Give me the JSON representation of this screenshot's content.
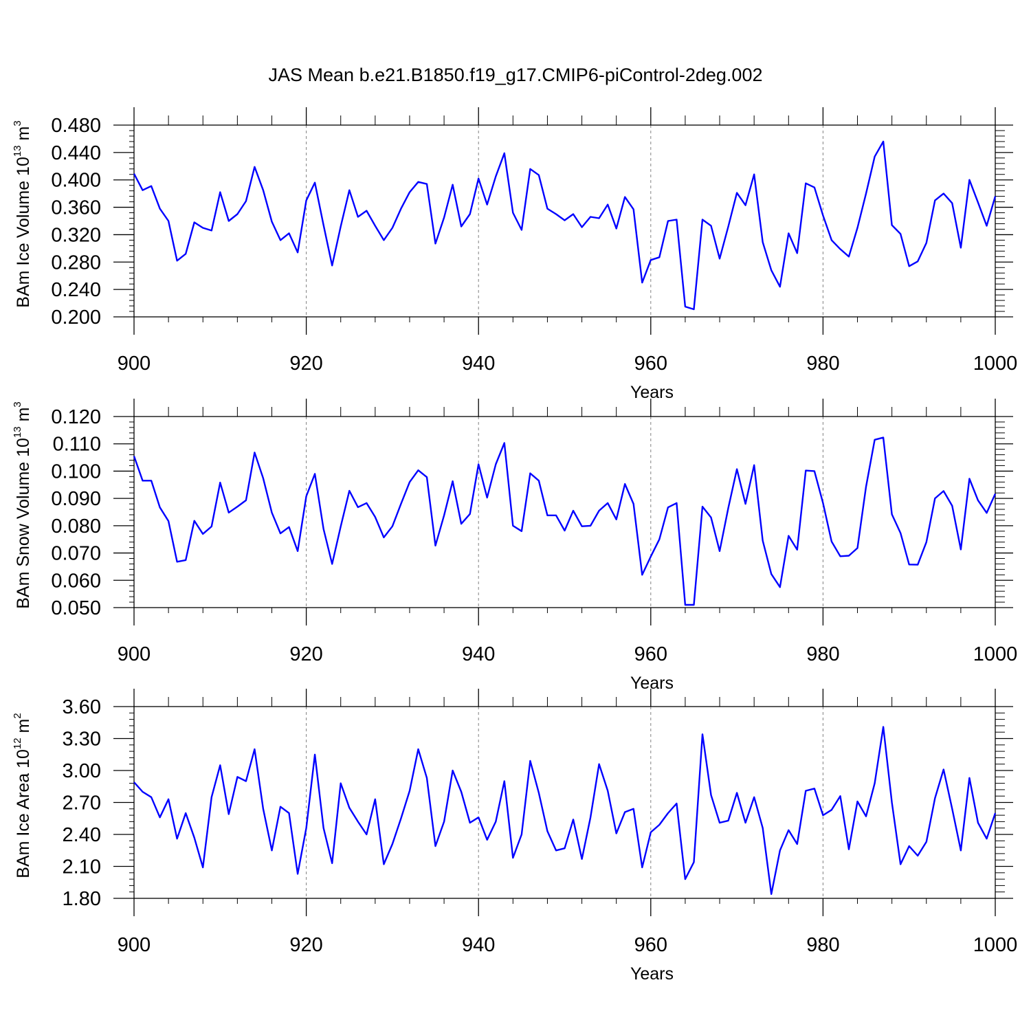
{
  "title": "JAS Mean b.e21.B1850.f19_g17.CMIP6-piControl-2deg.002",
  "chart_data": [
    {
      "type": "line",
      "ylabel": "BAm Ice Volume 10",
      "ylabel_exp": "13",
      "ylabel_unit": " m",
      "ylabel_unit_exp": "3",
      "xlabel": "Years",
      "xlim": [
        900,
        1000
      ],
      "ylim": [
        0.2,
        0.48
      ],
      "xticks": [
        900,
        920,
        940,
        960,
        980,
        1000
      ],
      "xtick_labels": [
        "900",
        "920",
        "940",
        "960",
        "980",
        "1000"
      ],
      "yticks": [
        0.2,
        0.24,
        0.28,
        0.32,
        0.36,
        0.4,
        0.44,
        0.48
      ],
      "ytick_labels": [
        "0.200",
        "0.240",
        "0.280",
        "0.320",
        "0.360",
        "0.400",
        "0.440",
        "0.480"
      ],
      "grid_x": [
        920,
        940,
        960,
        980
      ],
      "line_color": "#0000ff",
      "series": [
        {
          "name": "BAm Ice Volume",
          "x_start": 900,
          "values": [
            0.409,
            0.385,
            0.391,
            0.358,
            0.34,
            0.282,
            0.292,
            0.338,
            0.33,
            0.326,
            0.382,
            0.34,
            0.35,
            0.369,
            0.419,
            0.385,
            0.339,
            0.312,
            0.322,
            0.294,
            0.37,
            0.396,
            0.334,
            0.275,
            0.332,
            0.385,
            0.346,
            0.355,
            0.333,
            0.312,
            0.33,
            0.358,
            0.382,
            0.397,
            0.394,
            0.307,
            0.345,
            0.393,
            0.332,
            0.35,
            0.402,
            0.364,
            0.405,
            0.439,
            0.352,
            0.327,
            0.416,
            0.407,
            0.358,
            0.35,
            0.341,
            0.35,
            0.331,
            0.346,
            0.344,
            0.364,
            0.329,
            0.375,
            0.357,
            0.25,
            0.283,
            0.287,
            0.34,
            0.342,
            0.215,
            0.211,
            0.342,
            0.333,
            0.285,
            0.332,
            0.381,
            0.363,
            0.408,
            0.309,
            0.268,
            0.244,
            0.322,
            0.293,
            0.395,
            0.389,
            0.348,
            0.312,
            0.299,
            0.288,
            0.33,
            0.38,
            0.434,
            0.456,
            0.334,
            0.321,
            0.274,
            0.281,
            0.308,
            0.37,
            0.38,
            0.366,
            0.301,
            0.4,
            0.367,
            0.333,
            0.376
          ]
        }
      ]
    },
    {
      "type": "line",
      "ylabel": "BAm Snow Volume 10",
      "ylabel_exp": "13",
      "ylabel_unit": " m",
      "ylabel_unit_exp": "3",
      "xlabel": "Years",
      "xlim": [
        900,
        1000
      ],
      "ylim": [
        0.05,
        0.12
      ],
      "xticks": [
        900,
        920,
        940,
        960,
        980,
        1000
      ],
      "xtick_labels": [
        "900",
        "920",
        "940",
        "960",
        "980",
        "1000"
      ],
      "yticks": [
        0.05,
        0.06,
        0.07,
        0.08,
        0.09,
        0.1,
        0.11,
        0.12
      ],
      "ytick_labels": [
        "0.050",
        "0.060",
        "0.070",
        "0.080",
        "0.090",
        "0.100",
        "0.110",
        "0.120"
      ],
      "grid_x": [
        920,
        940,
        960,
        980
      ],
      "line_color": "#0000ff",
      "series": [
        {
          "name": "BAm Snow Volume",
          "x_start": 900,
          "values": [
            0.1055,
            0.0965,
            0.0965,
            0.0867,
            0.0817,
            0.0668,
            0.0674,
            0.0818,
            0.077,
            0.0797,
            0.0958,
            0.0848,
            0.087,
            0.0893,
            0.1068,
            0.0974,
            0.0848,
            0.0772,
            0.0795,
            0.0707,
            0.0908,
            0.099,
            0.0788,
            0.066,
            0.0797,
            0.0928,
            0.0868,
            0.0883,
            0.0832,
            0.0757,
            0.0798,
            0.088,
            0.096,
            0.1003,
            0.0978,
            0.0727,
            0.0838,
            0.0963,
            0.0807,
            0.0843,
            0.1025,
            0.0903,
            0.1025,
            0.1103,
            0.08,
            0.078,
            0.0992,
            0.0965,
            0.0838,
            0.0838,
            0.0782,
            0.0855,
            0.0798,
            0.08,
            0.0855,
            0.0883,
            0.0823,
            0.0953,
            0.088,
            0.062,
            0.0687,
            0.075,
            0.0867,
            0.0883,
            0.051,
            0.051,
            0.087,
            0.083,
            0.0707,
            0.0865,
            0.1007,
            0.088,
            0.1022,
            0.0745,
            0.0623,
            0.0575,
            0.0763,
            0.0712,
            0.1002,
            0.1,
            0.0883,
            0.0742,
            0.0688,
            0.069,
            0.0718,
            0.0943,
            0.1115,
            0.1123,
            0.0842,
            0.0773,
            0.0658,
            0.0657,
            0.074,
            0.09,
            0.0927,
            0.0873,
            0.0713,
            0.0972,
            0.0893,
            0.0847,
            0.0917
          ]
        }
      ]
    },
    {
      "type": "line",
      "ylabel": "BAm Ice Area 10",
      "ylabel_exp": "12",
      "ylabel_unit": " m",
      "ylabel_unit_exp": "2",
      "xlabel": "Years",
      "xlim": [
        900,
        1000
      ],
      "ylim": [
        1.8,
        3.6
      ],
      "xticks": [
        900,
        920,
        940,
        960,
        980,
        1000
      ],
      "xtick_labels": [
        "900",
        "920",
        "940",
        "960",
        "980",
        "1000"
      ],
      "yticks": [
        1.8,
        2.1,
        2.4,
        2.7,
        3.0,
        3.3,
        3.6
      ],
      "ytick_labels": [
        "1.80",
        "2.10",
        "2.40",
        "2.70",
        "3.00",
        "3.30",
        "3.60"
      ],
      "grid_x": [
        920,
        940,
        960,
        980
      ],
      "line_color": "#0000ff",
      "series": [
        {
          "name": "BAm Ice Area",
          "x_start": 900,
          "values": [
            2.89,
            2.8,
            2.75,
            2.56,
            2.73,
            2.36,
            2.6,
            2.37,
            2.09,
            2.75,
            3.05,
            2.59,
            2.94,
            2.9,
            3.2,
            2.64,
            2.25,
            2.66,
            2.6,
            2.03,
            2.46,
            3.15,
            2.46,
            2.13,
            2.88,
            2.65,
            2.52,
            2.4,
            2.73,
            2.12,
            2.31,
            2.55,
            2.81,
            3.2,
            2.93,
            2.29,
            2.52,
            3.0,
            2.8,
            2.51,
            2.56,
            2.35,
            2.52,
            2.9,
            2.18,
            2.4,
            3.09,
            2.79,
            2.43,
            2.25,
            2.27,
            2.54,
            2.17,
            2.56,
            3.06,
            2.81,
            2.41,
            2.61,
            2.64,
            2.09,
            2.42,
            2.49,
            2.6,
            2.69,
            1.98,
            2.14,
            3.34,
            2.77,
            2.51,
            2.53,
            2.79,
            2.51,
            2.75,
            2.46,
            1.84,
            2.25,
            2.44,
            2.31,
            2.81,
            2.83,
            2.58,
            2.63,
            2.76,
            2.26,
            2.71,
            2.57,
            2.88,
            3.41,
            2.7,
            2.12,
            2.29,
            2.2,
            2.33,
            2.74,
            3.01,
            2.64,
            2.25,
            2.93,
            2.51,
            2.36,
            2.6
          ]
        }
      ]
    }
  ]
}
